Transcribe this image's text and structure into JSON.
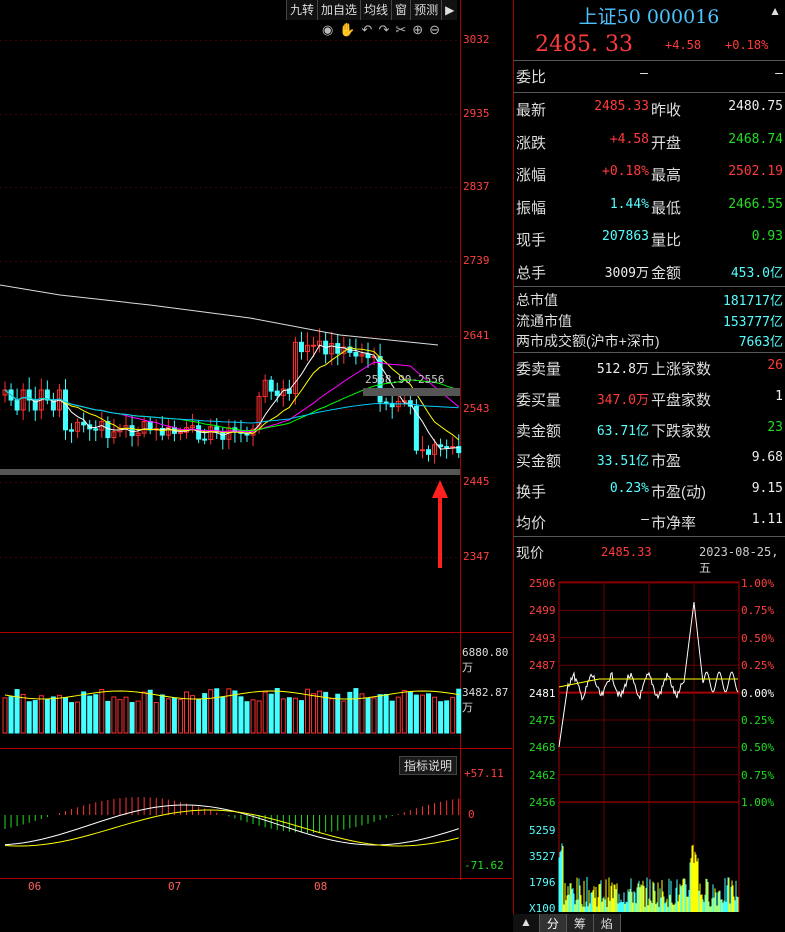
{
  "toolbar": {
    "buttons": [
      "九转",
      "加自选",
      "均线",
      "窗",
      "预测"
    ],
    "arrow": "▶"
  },
  "chart": {
    "yticks": [
      "3032",
      "2935",
      "2837",
      "2739",
      "2641",
      "2543",
      "2445",
      "2347"
    ],
    "ma_label": "2568.90-2556",
    "vol_ticks": [
      "6880.80万",
      "3482.87万"
    ],
    "macd_ticks": [
      "+57.11",
      "0",
      "-71.62"
    ],
    "indicator_btn": "指标说明",
    "months": [
      "06",
      "07",
      "08"
    ]
  },
  "panel": {
    "title": "上证50 000016",
    "price": "2485. 33",
    "change": "+4.58",
    "pct": "+0.18%",
    "wei_bi": {
      "label": "委比",
      "v1": "–",
      "v2": "–"
    },
    "rows": [
      {
        "l1": "最新",
        "v1": "2485.33",
        "c1": "red",
        "l2": "昨收",
        "v2": "2480.75",
        "c2": "white"
      },
      {
        "l1": "涨跌",
        "v1": "+4.58",
        "c1": "red",
        "l2": "开盘",
        "v2": "2468.74",
        "c2": "green"
      },
      {
        "l1": "涨幅",
        "v1": "+0.18%",
        "c1": "red",
        "l2": "最高",
        "v2": "2502.19",
        "c2": "red"
      },
      {
        "l1": "振幅",
        "v1": "1.44%",
        "c1": "cyan",
        "l2": "最低",
        "v2": "2466.55",
        "c2": "green"
      },
      {
        "l1": "现手",
        "v1": "207863",
        "c1": "cyan",
        "l2": "量比",
        "v2": "0.93",
        "c2": "green"
      },
      {
        "l1": "总手",
        "v1": "3009万",
        "c1": "white",
        "l2": "金额",
        "v2": "453.0亿",
        "c2": "cyan"
      }
    ],
    "mkt": [
      {
        "l": "总市值",
        "v": "181717亿"
      },
      {
        "l": "流通市值",
        "v": "153777亿"
      },
      {
        "l": "两市成交额(沪市+深市)",
        "v": "7663亿"
      }
    ],
    "rows2": [
      {
        "l1": "委卖量",
        "v1": "512.8万",
        "c1": "white",
        "l2": "上涨家数",
        "v2": "26",
        "c2": "red"
      },
      {
        "l1": "委买量",
        "v1": "347.0万",
        "c1": "red",
        "l2": "平盘家数",
        "v2": "1",
        "c2": "white"
      },
      {
        "l1": "卖金额",
        "v1": "63.71亿",
        "c1": "cyan",
        "l2": "下跌家数",
        "v2": "23",
        "c2": "green"
      },
      {
        "l1": "买金额",
        "v1": "33.51亿",
        "c1": "cyan",
        "l2": "市盈",
        "v2": "9.68",
        "c2": "white"
      },
      {
        "l1": "换手",
        "v1": "0.23%",
        "c1": "cyan",
        "l2": "市盈(动)",
        "v2": "9.15",
        "c2": "white"
      },
      {
        "l1": "均价",
        "v1": "–",
        "c1": "white",
        "l2": "市净率",
        "v2": "1.11",
        "c2": "white"
      }
    ],
    "intraday": {
      "label": "现价",
      "price": "2485.33",
      "date": "2023-08-25,五",
      "left_ticks": [
        "2506",
        "2499",
        "2493",
        "2487",
        "2481",
        "2475",
        "2468",
        "2462",
        "2456"
      ],
      "right_ticks": [
        "1.00%",
        "0.75%",
        "0.50%",
        "0.25%",
        "0.00%",
        "0.25%",
        "0.50%",
        "0.75%",
        "1.00%"
      ],
      "vol_ticks": [
        "5259",
        "3527",
        "1796",
        "X100"
      ]
    }
  },
  "tabs": [
    "▲",
    "分",
    "筹",
    "焰"
  ]
}
